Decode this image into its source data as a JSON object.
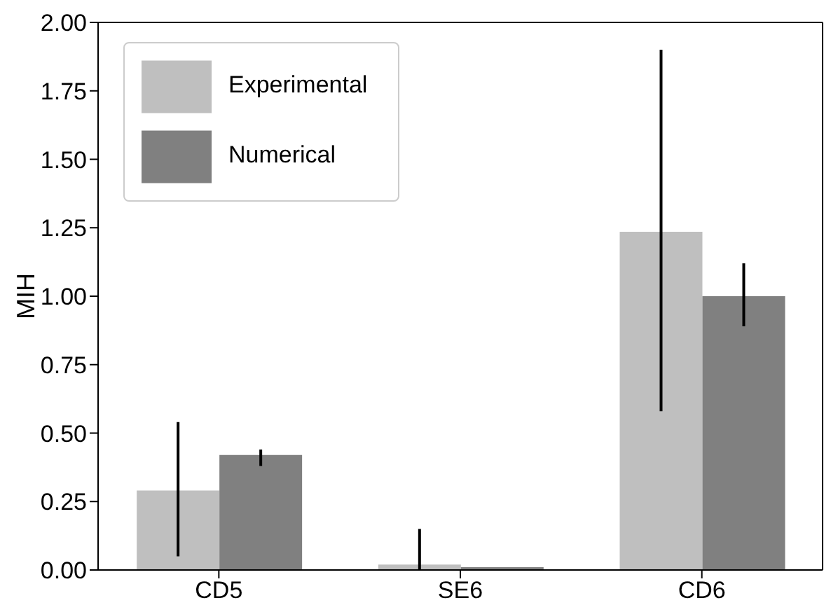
{
  "chart_data": {
    "type": "bar",
    "ylabel": "MIH",
    "categories": [
      "CD5",
      "SE6",
      "CD6"
    ],
    "series": [
      {
        "name": "Experimental",
        "color": "#bfbfbf",
        "values": [
          0.29,
          0.02,
          1.235
        ],
        "errors": [
          [
            0.05,
            0.54
          ],
          [
            0,
            0.15
          ],
          [
            0.58,
            1.9
          ]
        ]
      },
      {
        "name": "Numerical",
        "color": "#808080",
        "values": [
          0.42,
          0.01,
          1.0
        ],
        "errors": [
          [
            0.38,
            0.44
          ],
          null,
          [
            0.89,
            1.12
          ]
        ]
      }
    ],
    "ylim": [
      0,
      2
    ],
    "yticks": [
      {
        "value": 0,
        "label": "0.00"
      },
      {
        "value": 0.25,
        "label": "0.25"
      },
      {
        "value": 0.5,
        "label": "0.50"
      },
      {
        "value": 0.75,
        "label": "0.75"
      },
      {
        "value": 1,
        "label": "1.00"
      },
      {
        "value": 1.25,
        "label": "1.25"
      },
      {
        "value": 1.5,
        "label": "1.50"
      },
      {
        "value": 1.75,
        "label": "1.75"
      },
      {
        "value": 2,
        "label": "2.00"
      }
    ],
    "grid": false,
    "legend": "top left"
  }
}
